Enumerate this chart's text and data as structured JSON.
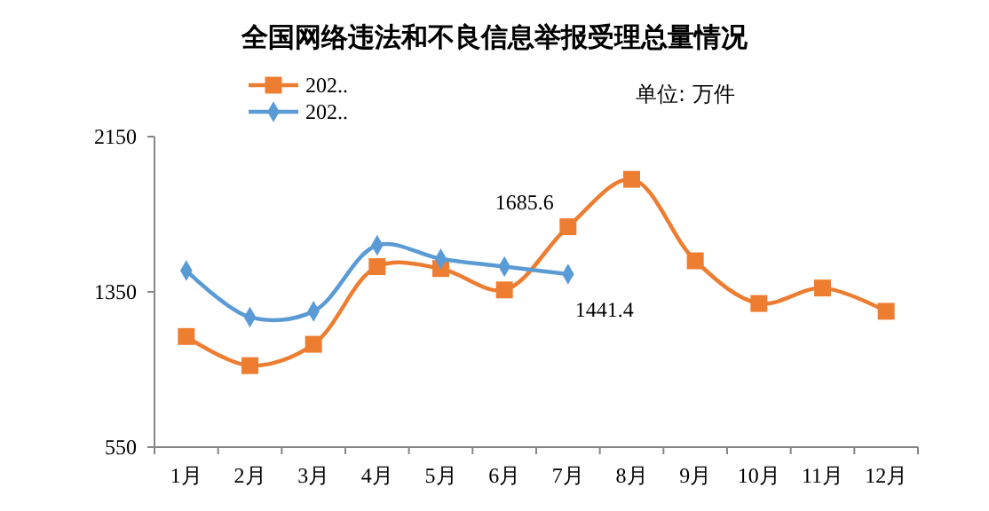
{
  "chart_data": {
    "type": "line",
    "title": "全国网络违法和不良信息举报受理总量情况",
    "subtitle": "单位: 万件",
    "categories": [
      "1月",
      "2月",
      "3月",
      "4月",
      "5月",
      "6月",
      "7月",
      "8月",
      "9月",
      "10月",
      "11月",
      "12月"
    ],
    "series": [
      {
        "name": "202..",
        "color": "#ed7d31",
        "marker": "square",
        "values": [
          1120,
          970,
          1080,
          1480,
          1470,
          1360,
          1685.6,
          1930,
          1510,
          1290,
          1370,
          1250
        ],
        "value_labels": [
          null,
          null,
          null,
          null,
          null,
          null,
          "1685.6",
          null,
          null,
          null,
          null,
          null
        ]
      },
      {
        "name": "202..",
        "color": "#5b9bd5",
        "marker": "diamond",
        "values": [
          1460,
          1220,
          1250,
          1590,
          1520,
          1480,
          1441.4,
          null,
          null,
          null,
          null,
          null
        ],
        "value_labels": [
          null,
          null,
          null,
          null,
          null,
          null,
          "1441.4",
          null,
          null,
          null,
          null,
          null
        ]
      }
    ],
    "ylim": [
      550,
      2150
    ],
    "yticks": [
      550,
      1350,
      2150
    ],
    "grid": false,
    "legend": "top left"
  }
}
